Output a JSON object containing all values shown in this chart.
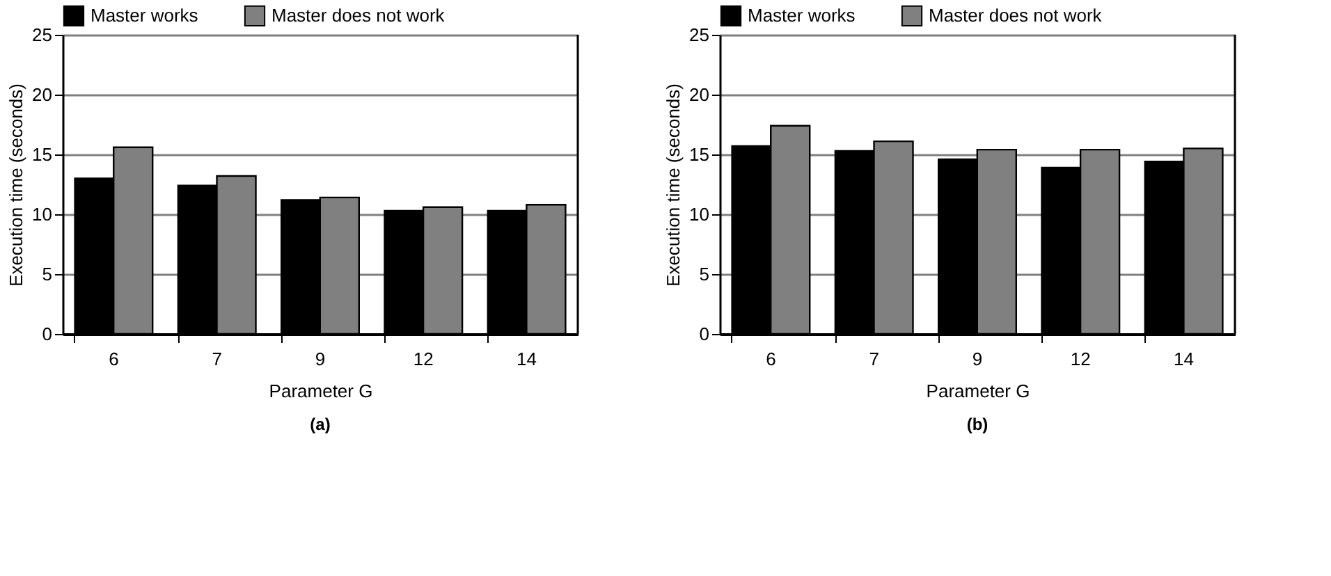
{
  "chart_data": [
    {
      "type": "bar",
      "categories": [
        "6",
        "7",
        "9",
        "12",
        "14"
      ],
      "xlabel": "Parameter G",
      "ylabel": "Execution time (seconds)",
      "ylim": [
        0,
        25
      ],
      "yticks": [
        0,
        5,
        10,
        15,
        20,
        25
      ],
      "grid": "y",
      "legend": "top",
      "annotations": [
        "(a)"
      ],
      "series": [
        {
          "name": "Master works",
          "color": "#000000",
          "values": [
            13.0,
            12.4,
            11.2,
            10.3,
            10.3
          ]
        },
        {
          "name": "Master does not work",
          "color": "#808080",
          "values": [
            15.6,
            13.2,
            11.4,
            10.6,
            10.8
          ]
        }
      ]
    },
    {
      "type": "bar",
      "categories": [
        "6",
        "7",
        "9",
        "12",
        "14"
      ],
      "xlabel": "Parameter G",
      "ylabel": "Execution time (seconds)",
      "ylim": [
        0,
        25
      ],
      "yticks": [
        0,
        5,
        10,
        15,
        20,
        25
      ],
      "grid": "y",
      "legend": "top",
      "annotations": [
        "(b)"
      ],
      "series": [
        {
          "name": "Master works",
          "color": "#000000",
          "values": [
            15.7,
            15.3,
            14.6,
            13.9,
            14.4
          ]
        },
        {
          "name": "Master does not work",
          "color": "#808080",
          "values": [
            17.4,
            16.1,
            15.4,
            15.4,
            15.5
          ]
        }
      ]
    }
  ]
}
